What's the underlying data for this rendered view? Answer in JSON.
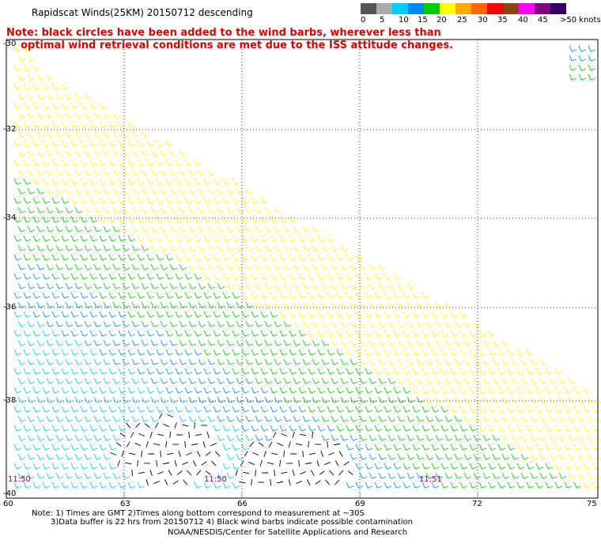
{
  "title": "Rapidscat Winds(25KM) 20150712 descending",
  "note_lines": [
    "Note: black circles have been added to the wind barbs, wherever less than",
    "    optimal wind retrieval conditions are met due to the ISS attitude changes."
  ],
  "colorbar": {
    "labels": [
      "0",
      "5",
      "10",
      "15",
      "20",
      "25",
      "30",
      "35",
      "40",
      "45",
      ">50 knots"
    ],
    "colors": [
      "#555555",
      "#aaaaaa",
      "#00ccff",
      "#0088ff",
      "#00cc00",
      "#ffff00",
      "#ffaa00",
      "#ff6600",
      "#ff0000",
      "#8b4513",
      "#ff00ff",
      "#800080",
      "#330066"
    ]
  },
  "map": {
    "lat_labels": [
      "-30",
      "-32",
      "-34",
      "-36",
      "-38",
      "-40"
    ],
    "lon_labels": [
      "60",
      "63",
      "66",
      "69",
      "72",
      "75"
    ],
    "time_labels": [
      "11:50",
      "11:50",
      "11:51"
    ]
  },
  "footer": {
    "line1": "Note: 1) Times are GMT 2)Times along bottom correspond to measurement at ~30S",
    "line2": "3)Data buffer is 22 hrs from 20150712 4) Black wind barbs indicate possible contamination",
    "line3": "NOAA/NESDIS/Center for Satellite Applications and Research"
  }
}
